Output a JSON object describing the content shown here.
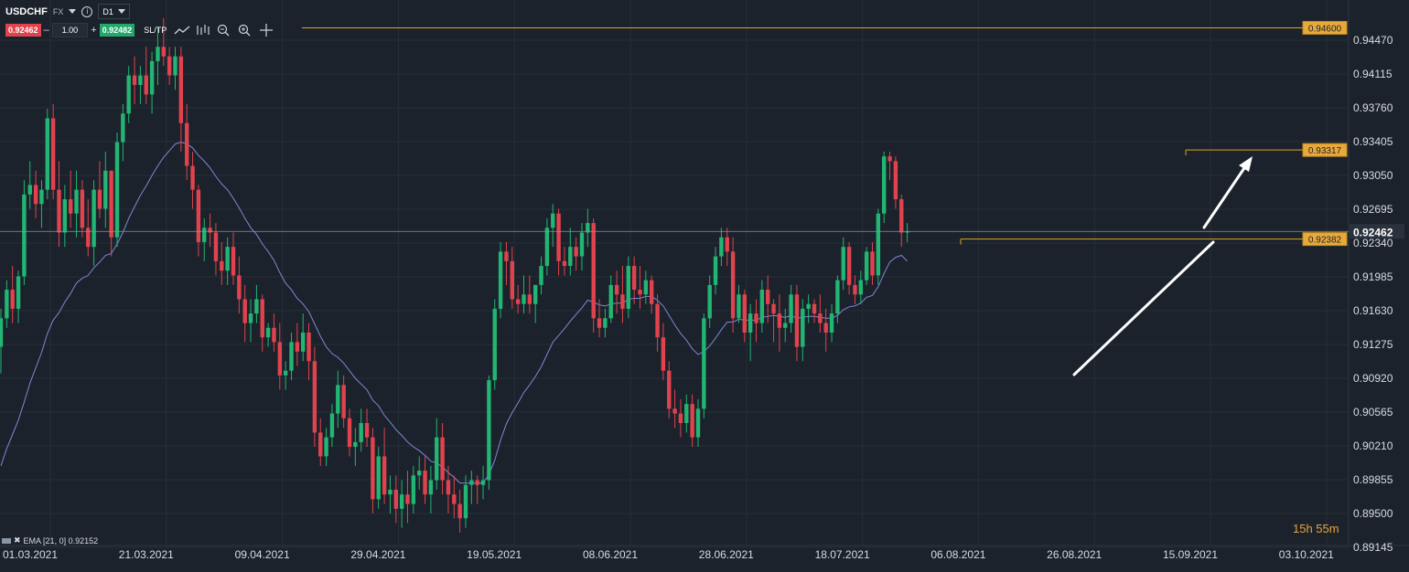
{
  "header": {
    "symbol": "USDCHF",
    "market": "FX",
    "timeframe": "D1",
    "bid": "0.92462",
    "ask": "0.92482",
    "quantity": "1.00",
    "minus": "–",
    "plus": "+",
    "sltp": "SL/TP",
    "info": "i"
  },
  "indicator_label": "EMA [21, 0] 0.92152",
  "timer": "15h 55m",
  "colors": {
    "bg": "#1b222b",
    "up": "#22b573",
    "down": "#e0434e",
    "ema": "#7f88d4",
    "level": "#d9a42b",
    "grid": "#252e38",
    "current": "#8a96a3"
  },
  "chart_data": {
    "type": "candlestick",
    "title": "",
    "symbol": "USDCHF",
    "timeframe": "D1",
    "ylim": [
      0.8915,
      0.948
    ],
    "y_ticks": [
      "0.94470",
      "0.94115",
      "0.93760",
      "0.93405",
      "0.93050",
      "0.92695",
      "0.92340",
      "0.91985",
      "0.91630",
      "0.91275",
      "0.90920",
      "0.90565",
      "0.90210",
      "0.89855",
      "0.89500",
      "0.89145"
    ],
    "x_ticks": [
      "01.03.2021",
      "21.03.2021",
      "09.04.2021",
      "29.04.2021",
      "19.05.2021",
      "08.06.2021",
      "28.06.2021",
      "18.07.2021",
      "06.08.2021",
      "26.08.2021",
      "15.09.2021",
      "03.10.2021"
    ],
    "current_price": {
      "value": 0.92462,
      "label": "0.92462"
    },
    "levels": [
      {
        "value": 0.946,
        "label": "0.94600"
      },
      {
        "value": 0.93317,
        "label": "0.93317"
      },
      {
        "value": 0.92382,
        "label": "0.92382"
      }
    ],
    "ema": {
      "name": "EMA [21, 0]",
      "last": 0.92152
    },
    "annotations": [
      "white trend line (support)",
      "white arrow pointing up"
    ],
    "candles": [
      [
        0.9125,
        0.9165,
        0.9097,
        0.9155
      ],
      [
        0.9155,
        0.9195,
        0.9145,
        0.9185
      ],
      [
        0.9185,
        0.921,
        0.915,
        0.9165
      ],
      [
        0.9165,
        0.9205,
        0.915,
        0.9199
      ],
      [
        0.9199,
        0.93,
        0.919,
        0.9285
      ],
      [
        0.9285,
        0.932,
        0.927,
        0.9295
      ],
      [
        0.9295,
        0.931,
        0.926,
        0.9275
      ],
      [
        0.9275,
        0.93,
        0.925,
        0.929
      ],
      [
        0.929,
        0.9375,
        0.928,
        0.9365
      ],
      [
        0.9365,
        0.938,
        0.928,
        0.929
      ],
      [
        0.929,
        0.932,
        0.923,
        0.9245
      ],
      [
        0.9245,
        0.9295,
        0.923,
        0.928
      ],
      [
        0.928,
        0.931,
        0.925,
        0.9265
      ],
      [
        0.9265,
        0.931,
        0.924,
        0.929
      ],
      [
        0.929,
        0.93,
        0.924,
        0.925
      ],
      [
        0.925,
        0.928,
        0.922,
        0.923
      ],
      [
        0.923,
        0.93,
        0.921,
        0.929
      ],
      [
        0.929,
        0.932,
        0.926,
        0.927
      ],
      [
        0.927,
        0.933,
        0.925,
        0.931
      ],
      [
        0.931,
        0.931,
        0.922,
        0.924
      ],
      [
        0.924,
        0.935,
        0.923,
        0.934
      ],
      [
        0.934,
        0.938,
        0.932,
        0.937
      ],
      [
        0.937,
        0.942,
        0.936,
        0.941
      ],
      [
        0.941,
        0.943,
        0.938,
        0.94
      ],
      [
        0.94,
        0.942,
        0.938,
        0.941
      ],
      [
        0.941,
        0.944,
        0.938,
        0.939
      ],
      [
        0.939,
        0.9435,
        0.937,
        0.9425
      ],
      [
        0.9425,
        0.946,
        0.94,
        0.944
      ],
      [
        0.944,
        0.947,
        0.942,
        0.943
      ],
      [
        0.943,
        0.944,
        0.94,
        0.941
      ],
      [
        0.941,
        0.944,
        0.9395,
        0.943
      ],
      [
        0.943,
        0.944,
        0.933,
        0.936
      ],
      [
        0.936,
        0.938,
        0.93,
        0.9315
      ],
      [
        0.9315,
        0.933,
        0.927,
        0.929
      ],
      [
        0.929,
        0.9295,
        0.922,
        0.9235
      ],
      [
        0.9235,
        0.926,
        0.9215,
        0.925
      ],
      [
        0.925,
        0.9265,
        0.923,
        0.9245
      ],
      [
        0.9245,
        0.9255,
        0.92,
        0.9215
      ],
      [
        0.9215,
        0.9235,
        0.919,
        0.9205
      ],
      [
        0.9205,
        0.924,
        0.919,
        0.923
      ],
      [
        0.923,
        0.9245,
        0.919,
        0.92
      ],
      [
        0.92,
        0.922,
        0.916,
        0.9175
      ],
      [
        0.9175,
        0.919,
        0.913,
        0.915
      ],
      [
        0.915,
        0.9175,
        0.913,
        0.916
      ],
      [
        0.916,
        0.919,
        0.915,
        0.9175
      ],
      [
        0.9175,
        0.918,
        0.912,
        0.9135
      ],
      [
        0.9135,
        0.915,
        0.9125,
        0.9145
      ],
      [
        0.9145,
        0.916,
        0.912,
        0.913
      ],
      [
        0.913,
        0.915,
        0.908,
        0.9095
      ],
      [
        0.9095,
        0.911,
        0.908,
        0.91
      ],
      [
        0.91,
        0.914,
        0.909,
        0.913
      ],
      [
        0.913,
        0.915,
        0.9105,
        0.912
      ],
      [
        0.912,
        0.916,
        0.911,
        0.914
      ],
      [
        0.914,
        0.915,
        0.909,
        0.911
      ],
      [
        0.911,
        0.9125,
        0.902,
        0.9035
      ],
      [
        0.9035,
        0.905,
        0.9,
        0.901
      ],
      [
        0.901,
        0.904,
        0.9,
        0.903
      ],
      [
        0.903,
        0.9065,
        0.902,
        0.9055
      ],
      [
        0.9055,
        0.91,
        0.904,
        0.9085
      ],
      [
        0.9085,
        0.9095,
        0.904,
        0.905
      ],
      [
        0.905,
        0.906,
        0.901,
        0.902
      ],
      [
        0.902,
        0.904,
        0.9,
        0.9025
      ],
      [
        0.9025,
        0.906,
        0.9015,
        0.9045
      ],
      [
        0.9045,
        0.906,
        0.902,
        0.903
      ],
      [
        0.903,
        0.904,
        0.895,
        0.8965
      ],
      [
        0.8965,
        0.902,
        0.8955,
        0.901
      ],
      [
        0.901,
        0.904,
        0.896,
        0.897
      ],
      [
        0.897,
        0.899,
        0.895,
        0.8975
      ],
      [
        0.8975,
        0.899,
        0.894,
        0.8955
      ],
      [
        0.8955,
        0.8985,
        0.8935,
        0.897
      ],
      [
        0.897,
        0.8995,
        0.894,
        0.896
      ],
      [
        0.896,
        0.9,
        0.895,
        0.899
      ],
      [
        0.899,
        0.901,
        0.8975,
        0.8995
      ],
      [
        0.8995,
        0.901,
        0.896,
        0.897
      ],
      [
        0.897,
        0.9,
        0.895,
        0.8985
      ],
      [
        0.8985,
        0.905,
        0.8975,
        0.903
      ],
      [
        0.903,
        0.9045,
        0.897,
        0.8985
      ],
      [
        0.8985,
        0.9,
        0.895,
        0.897
      ],
      [
        0.897,
        0.899,
        0.8945,
        0.896
      ],
      [
        0.896,
        0.8975,
        0.893,
        0.8945
      ],
      [
        0.8945,
        0.899,
        0.8935,
        0.898
      ],
      [
        0.898,
        0.8995,
        0.896,
        0.8985
      ],
      [
        0.8985,
        0.899,
        0.896,
        0.898
      ],
      [
        0.898,
        0.9,
        0.8965,
        0.8985
      ],
      [
        0.8985,
        0.9095,
        0.8975,
        0.909
      ],
      [
        0.909,
        0.9175,
        0.908,
        0.9165
      ],
      [
        0.9165,
        0.9235,
        0.9155,
        0.9225
      ],
      [
        0.9225,
        0.9235,
        0.919,
        0.9215
      ],
      [
        0.9215,
        0.923,
        0.9165,
        0.9175
      ],
      [
        0.9175,
        0.919,
        0.916,
        0.917
      ],
      [
        0.917,
        0.92,
        0.916,
        0.918
      ],
      [
        0.918,
        0.92,
        0.916,
        0.917
      ],
      [
        0.917,
        0.919,
        0.915,
        0.919
      ],
      [
        0.919,
        0.922,
        0.918,
        0.921
      ],
      [
        0.921,
        0.926,
        0.92,
        0.925
      ],
      [
        0.925,
        0.9275,
        0.923,
        0.9265
      ],
      [
        0.9265,
        0.927,
        0.92,
        0.9215
      ],
      [
        0.9215,
        0.923,
        0.92,
        0.921
      ],
      [
        0.921,
        0.925,
        0.92,
        0.923
      ],
      [
        0.923,
        0.924,
        0.9205,
        0.922
      ],
      [
        0.922,
        0.9255,
        0.9205,
        0.9245
      ],
      [
        0.9245,
        0.927,
        0.923,
        0.9255
      ],
      [
        0.9255,
        0.926,
        0.914,
        0.9155
      ],
      [
        0.9155,
        0.9175,
        0.9135,
        0.9145
      ],
      [
        0.9145,
        0.9165,
        0.9135,
        0.9155
      ],
      [
        0.9155,
        0.92,
        0.915,
        0.919
      ],
      [
        0.919,
        0.9205,
        0.916,
        0.918
      ],
      [
        0.918,
        0.921,
        0.915,
        0.9165
      ],
      [
        0.9165,
        0.922,
        0.9155,
        0.921
      ],
      [
        0.921,
        0.922,
        0.917,
        0.9185
      ],
      [
        0.9185,
        0.921,
        0.9165,
        0.918
      ],
      [
        0.918,
        0.9205,
        0.917,
        0.9195
      ],
      [
        0.9195,
        0.92,
        0.916,
        0.917
      ],
      [
        0.917,
        0.918,
        0.912,
        0.9135
      ],
      [
        0.9135,
        0.915,
        0.909,
        0.91
      ],
      [
        0.91,
        0.911,
        0.905,
        0.906
      ],
      [
        0.906,
        0.908,
        0.904,
        0.9055
      ],
      [
        0.9055,
        0.907,
        0.903,
        0.9045
      ],
      [
        0.9045,
        0.9075,
        0.9035,
        0.9065
      ],
      [
        0.9065,
        0.9075,
        0.902,
        0.903
      ],
      [
        0.903,
        0.907,
        0.902,
        0.906
      ],
      [
        0.906,
        0.916,
        0.905,
        0.9155
      ],
      [
        0.9155,
        0.92,
        0.9145,
        0.919
      ],
      [
        0.919,
        0.923,
        0.918,
        0.922
      ],
      [
        0.922,
        0.925,
        0.921,
        0.924
      ],
      [
        0.924,
        0.925,
        0.921,
        0.9225
      ],
      [
        0.9225,
        0.924,
        0.914,
        0.9155
      ],
      [
        0.9155,
        0.919,
        0.915,
        0.918
      ],
      [
        0.918,
        0.9185,
        0.913,
        0.914
      ],
      [
        0.914,
        0.917,
        0.911,
        0.916
      ],
      [
        0.916,
        0.9175,
        0.913,
        0.915
      ],
      [
        0.915,
        0.9195,
        0.914,
        0.9185
      ],
      [
        0.9185,
        0.92,
        0.915,
        0.917
      ],
      [
        0.917,
        0.9175,
        0.913,
        0.916
      ],
      [
        0.916,
        0.918,
        0.912,
        0.9145
      ],
      [
        0.9145,
        0.9165,
        0.913,
        0.915
      ],
      [
        0.915,
        0.919,
        0.914,
        0.918
      ],
      [
        0.918,
        0.919,
        0.911,
        0.9125
      ],
      [
        0.9125,
        0.9175,
        0.911,
        0.9165
      ],
      [
        0.9165,
        0.918,
        0.915,
        0.917
      ],
      [
        0.917,
        0.9175,
        0.915,
        0.916
      ],
      [
        0.916,
        0.918,
        0.914,
        0.915
      ],
      [
        0.915,
        0.9165,
        0.912,
        0.914
      ],
      [
        0.914,
        0.917,
        0.913,
        0.916
      ],
      [
        0.916,
        0.92,
        0.915,
        0.9195
      ],
      [
        0.9195,
        0.924,
        0.9185,
        0.923
      ],
      [
        0.923,
        0.9235,
        0.918,
        0.919
      ],
      [
        0.919,
        0.92,
        0.917,
        0.918
      ],
      [
        0.918,
        0.9205,
        0.917,
        0.9195
      ],
      [
        0.9195,
        0.923,
        0.919,
        0.9225
      ],
      [
        0.9225,
        0.9235,
        0.919,
        0.92
      ],
      [
        0.92,
        0.927,
        0.919,
        0.9265
      ],
      [
        0.9265,
        0.933,
        0.9255,
        0.9325
      ],
      [
        0.9325,
        0.933,
        0.93,
        0.932
      ],
      [
        0.932,
        0.9325,
        0.927,
        0.928
      ],
      [
        0.928,
        0.9285,
        0.923,
        0.9245
      ],
      [
        0.9245,
        0.9255,
        0.9235,
        0.9246
      ]
    ],
    "ema_values": [
      0.9,
      0.9018,
      0.9033,
      0.9048,
      0.9067,
      0.9087,
      0.9103,
      0.9119,
      0.9139,
      0.9153,
      0.9161,
      0.9172,
      0.9181,
      0.9192,
      0.9197,
      0.92,
      0.9208,
      0.9214,
      0.9221,
      0.9223,
      0.9233,
      0.9245,
      0.926,
      0.9272,
      0.9284,
      0.9294,
      0.9305,
      0.9315,
      0.9324,
      0.9331,
      0.9338,
      0.934,
      0.9338,
      0.9334,
      0.9326,
      0.932,
      0.9313,
      0.9304,
      0.9296,
      0.929,
      0.9281,
      0.9271,
      0.926,
      0.925,
      0.9243,
      0.9233,
      0.9225,
      0.9216,
      0.9203,
      0.9192,
      0.9185,
      0.9176,
      0.917,
      0.9162,
      0.9149,
      0.9136,
      0.9125,
      0.9118,
      0.9114,
      0.9108,
      0.91,
      0.9092,
      0.9086,
      0.908,
      0.9069,
      0.9063,
      0.9053,
      0.9046,
      0.9038,
      0.9032,
      0.9025,
      0.902,
      0.9016,
      0.9011,
      0.9005,
      0.9003,
      0.8999,
      0.8993,
      0.8988,
      0.8982,
      0.8982,
      0.8982,
      0.8982,
      0.8982,
      0.8991,
      0.9006,
      0.9027,
      0.9044,
      0.9056,
      0.9066,
      0.9077,
      0.9085,
      0.9094,
      0.9104,
      0.9117,
      0.913,
      0.9137,
      0.9144,
      0.9152,
      0.9159,
      0.9166,
      0.9174,
      0.9172,
      0.9169,
      0.9168,
      0.917,
      0.9171,
      0.9171,
      0.9175,
      0.9176,
      0.9176,
      0.9178,
      0.9178,
      0.9174,
      0.9168,
      0.9158,
      0.9148,
      0.9139,
      0.9132,
      0.9123,
      0.9117,
      0.912,
      0.9126,
      0.9134,
      0.9143,
      0.9151,
      0.9151,
      0.9154,
      0.9153,
      0.9153,
      0.9153,
      0.9156,
      0.9157,
      0.9158,
      0.9157,
      0.9156,
      0.9158,
      0.9155,
      0.9156,
      0.9157,
      0.9157,
      0.9156,
      0.9155,
      0.9155,
      0.9158,
      0.9164,
      0.9167,
      0.9168,
      0.9171,
      0.9177,
      0.9179,
      0.9188,
      0.9202,
      0.9214,
      0.9219,
      0.9221,
      0.9215
    ]
  }
}
